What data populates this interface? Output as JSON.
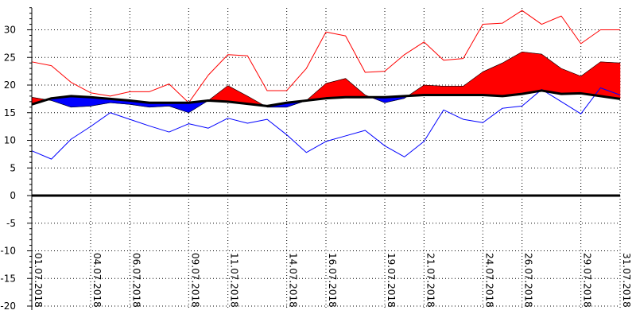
{
  "chart_data": {
    "type": "area",
    "title": "",
    "xlabel": "",
    "ylabel": "",
    "ylim": [
      -20,
      35
    ],
    "yticks": [
      30,
      25,
      20,
      15,
      10,
      5,
      0,
      -5,
      -10,
      -15,
      -20
    ],
    "grid": true,
    "legend": "none",
    "dates": [
      "01.07.2018",
      "02.07.2018",
      "03.07.2018",
      "04.07.2018",
      "05.07.2018",
      "06.07.2018",
      "07.07.2018",
      "08.07.2018",
      "09.07.2018",
      "10.07.2018",
      "11.07.2018",
      "12.07.2018",
      "13.07.2018",
      "14.07.2018",
      "15.07.2018",
      "16.07.2018",
      "17.07.2018",
      "18.07.2018",
      "19.07.2018",
      "20.07.2018",
      "21.07.2018",
      "22.07.2018",
      "23.07.2018",
      "24.07.2018",
      "25.07.2018",
      "26.07.2018",
      "27.07.2018",
      "28.07.2018",
      "29.07.2018",
      "30.07.2018",
      "31.07.2018"
    ],
    "x_tick_labels": [
      "01.07.2018",
      "04.07.2018",
      "06.07.2018",
      "09.07.2018",
      "11.07.2018",
      "14.07.2018",
      "16.07.2018",
      "19.07.2018",
      "21.07.2018",
      "24.07.2018",
      "26.07.2018",
      "29.07.2018",
      "31.07.2018"
    ],
    "series": [
      {
        "values": [
          24.2,
          23.5,
          20.5,
          18.6,
          18.0,
          18.8,
          18.8,
          20.2,
          16.8,
          21.8,
          25.5,
          25.3,
          19.0,
          19.0,
          23.0,
          29.6,
          28.9,
          22.3,
          22.5,
          25.5,
          27.8,
          24.5,
          24.8,
          31.0,
          31.2,
          33.5,
          31.0,
          32.5,
          27.5,
          30.0,
          30.0
        ],
        "color": "#ff0000",
        "style": "thin-line"
      },
      {
        "values": [
          17.8,
          17.2,
          16.0,
          16.2,
          16.8,
          16.5,
          16.0,
          16.2,
          15.0,
          17.2,
          19.9,
          18.0,
          16.0,
          16.0,
          17.2,
          20.3,
          21.2,
          18.2,
          16.8,
          17.6,
          20.0,
          19.8,
          19.8,
          22.4,
          24.0,
          26.0,
          25.6,
          23.0,
          21.6,
          24.2,
          24.0
        ],
        "color": "#ff0000",
        "style": "filled-area"
      },
      {
        "values": [
          16.5,
          17.6,
          18.0,
          17.8,
          17.5,
          17.2,
          16.8,
          16.8,
          16.8,
          17.2,
          17.0,
          16.6,
          16.2,
          16.8,
          17.2,
          17.6,
          17.8,
          17.8,
          17.8,
          18.0,
          18.2,
          18.2,
          18.2,
          18.2,
          18.0,
          18.4,
          19.0,
          18.4,
          18.5,
          18.0,
          17.5
        ],
        "color": "#000000",
        "style": "thick-line"
      },
      {
        "values": [
          8.1,
          6.6,
          10.2,
          12.5,
          15.0,
          13.8,
          12.6,
          11.5,
          13.0,
          12.2,
          14.0,
          13.1,
          13.8,
          11.0,
          7.8,
          9.8,
          10.8,
          11.8,
          9.0,
          7.0,
          9.8,
          15.5,
          13.8,
          13.2,
          15.8,
          16.2,
          19.2,
          17.0,
          14.8,
          19.5,
          18.2
        ],
        "color": "#0000ff",
        "style": "thin-line"
      }
    ],
    "zero_line": 0
  }
}
